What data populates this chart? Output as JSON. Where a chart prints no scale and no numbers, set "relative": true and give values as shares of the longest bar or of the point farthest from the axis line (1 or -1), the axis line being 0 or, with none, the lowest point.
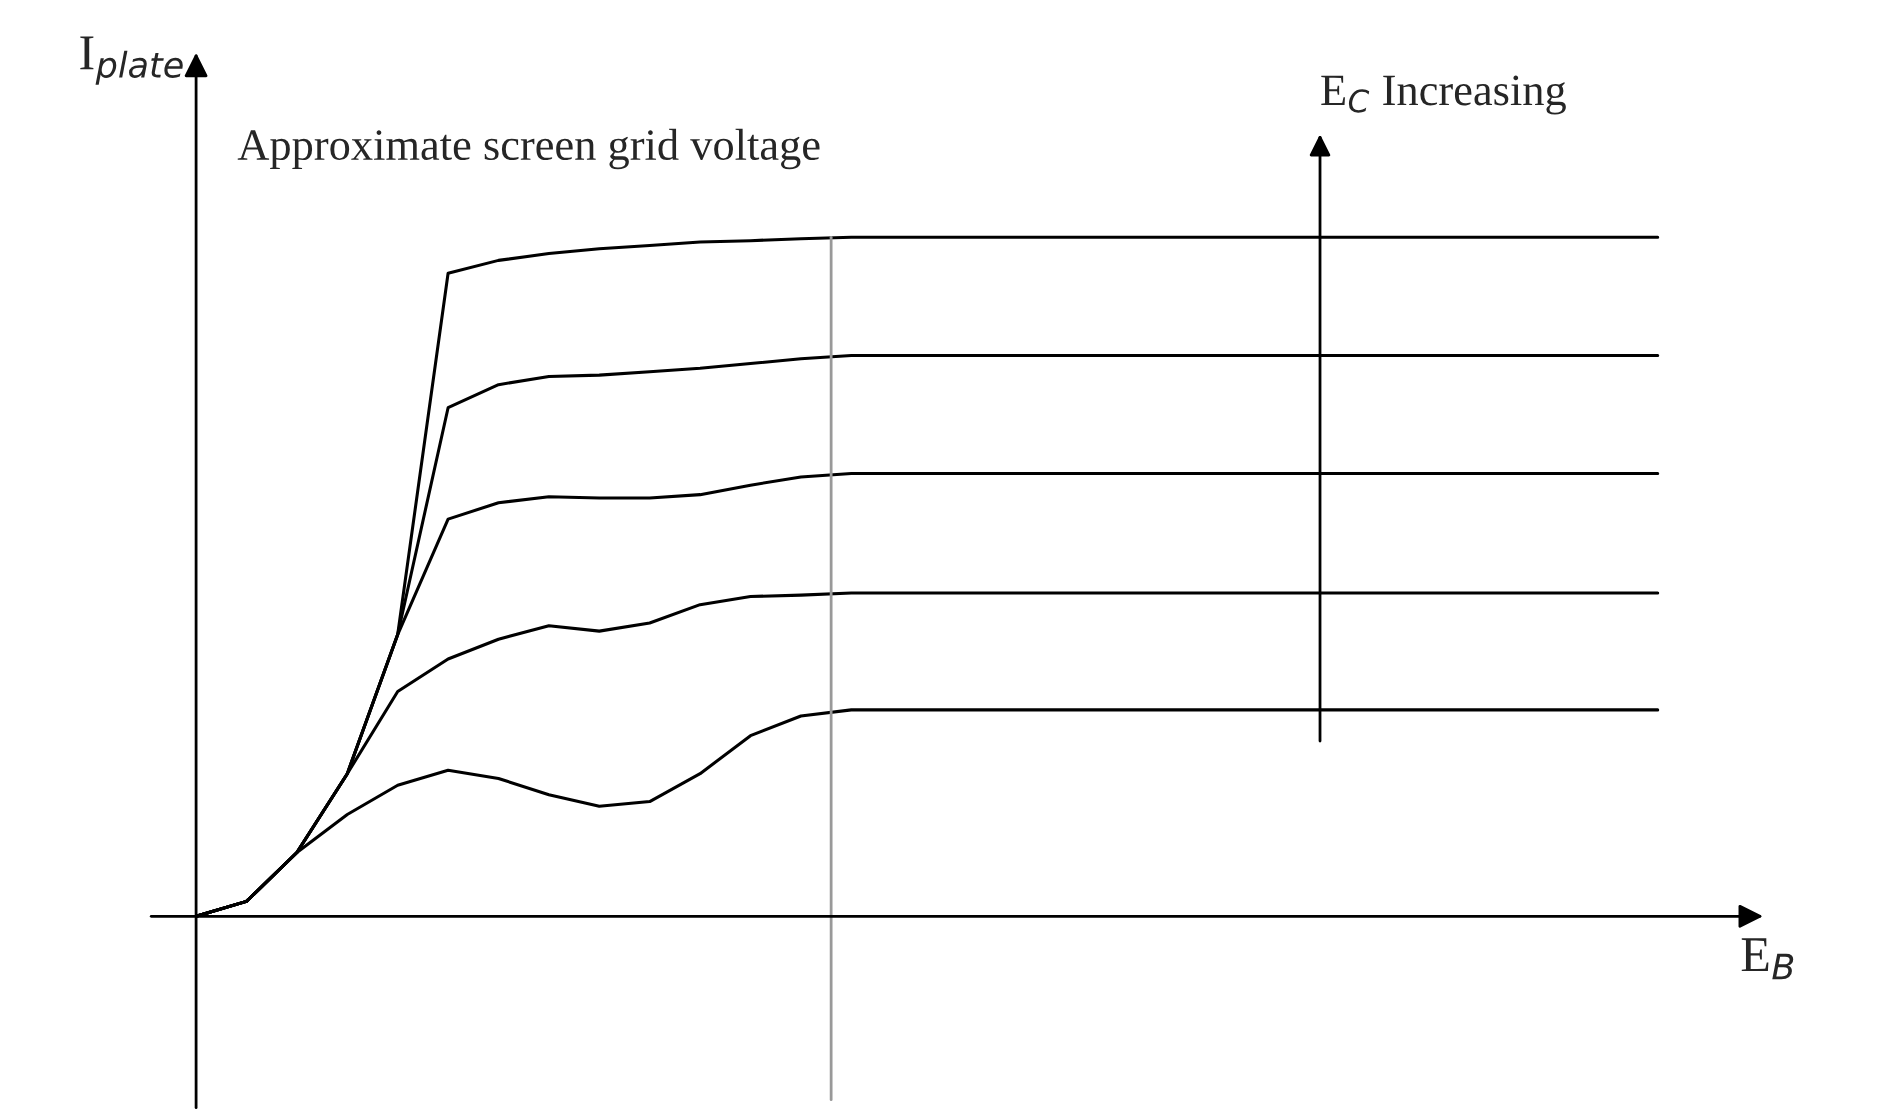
{
  "chart_data": {
    "type": "line",
    "relative": true,
    "xlabel": "E$_{B}$",
    "ylabel": "I$_{plate}$",
    "categories": [
      null,
      null,
      null,
      null,
      null,
      null,
      null,
      null,
      null,
      null,
      null,
      null,
      null,
      null,
      null,
      null,
      null,
      null,
      null,
      null,
      null,
      null,
      null,
      null,
      null,
      null,
      null,
      null,
      null,
      null
    ],
    "series": [
      {
        "color": "#000000",
        "values": [
          0,
          0.022,
          0.094,
          0.15,
          0.193,
          0.215,
          0.203,
          0.179,
          0.162,
          0.169,
          0.21,
          0.266,
          0.295,
          0.304,
          0.304,
          0.304,
          0.304,
          0.304,
          0.304,
          0.304,
          0.304,
          0.304,
          0.304,
          0.304,
          0.304,
          0.304,
          0.304,
          0.304,
          0.304,
          0.304
        ]
      },
      {
        "color": "#000000",
        "values": [
          0,
          0.022,
          0.094,
          0.21,
          0.331,
          0.379,
          0.408,
          0.428,
          0.42,
          0.432,
          0.459,
          0.471,
          0.473,
          0.476,
          0.476,
          0.476,
          0.476,
          0.476,
          0.476,
          0.476,
          0.476,
          0.476,
          0.476,
          0.476,
          0.476,
          0.476,
          0.476,
          0.476,
          0.476,
          0.476
        ]
      },
      {
        "color": "#000000",
        "values": [
          0,
          0.022,
          0.094,
          0.21,
          0.415,
          0.585,
          0.609,
          0.618,
          0.616,
          0.616,
          0.621,
          0.635,
          0.647,
          0.652,
          0.652,
          0.652,
          0.652,
          0.652,
          0.652,
          0.652,
          0.652,
          0.652,
          0.652,
          0.652,
          0.652,
          0.652,
          0.652,
          0.652,
          0.652,
          0.652
        ]
      },
      {
        "color": "#000000",
        "values": [
          0,
          0.022,
          0.094,
          0.21,
          0.415,
          0.749,
          0.783,
          0.795,
          0.797,
          0.802,
          0.807,
          0.814,
          0.821,
          0.826,
          0.826,
          0.826,
          0.826,
          0.826,
          0.826,
          0.826,
          0.826,
          0.826,
          0.826,
          0.826,
          0.826,
          0.826,
          0.826,
          0.826,
          0.826,
          0.826
        ]
      },
      {
        "color": "#000000",
        "values": [
          0,
          0.022,
          0.094,
          0.21,
          0.415,
          0.947,
          0.966,
          0.976,
          0.983,
          0.988,
          0.993,
          0.995,
          0.998,
          1,
          1,
          1,
          1,
          1,
          1,
          1,
          1,
          1,
          1,
          1,
          1,
          1,
          1,
          1,
          1,
          1
        ]
      }
    ],
    "annotations": [
      "Approximate screen grid voltage",
      "E$_{C}$ Increasing"
    ],
    "legend": false,
    "line_style": "solid",
    "marker": "none"
  }
}
